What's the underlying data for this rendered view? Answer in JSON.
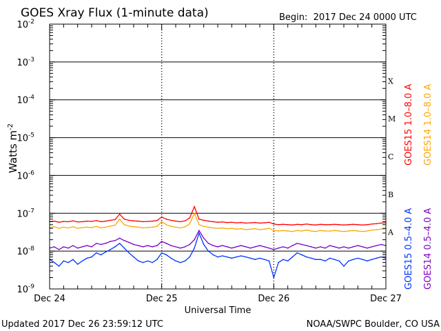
{
  "chart_data": {
    "type": "line",
    "title": "GOES Xray Flux (1-minute data)",
    "begin_label": "Begin:  2017 Dec 24 0000 UTC",
    "updated_label": "Updated 2017 Dec 26 23:59:12 UTC",
    "credit_label": "NOAA/SWPC Boulder, CO USA",
    "xlabel": "Universal Time",
    "ylabel": "Watts m",
    "ylabel_exp": "-2",
    "yscale": "log",
    "ylim": [
      1e-09,
      0.01
    ],
    "xlim_hours": [
      0,
      72
    ],
    "x_unit": "hours since 2017 Dec 24 0000 UTC (hourly samples)",
    "xticks": [
      {
        "hour": 0,
        "label": "Dec 24"
      },
      {
        "hour": 24,
        "label": "Dec 25"
      },
      {
        "hour": 48,
        "label": "Dec 26"
      },
      {
        "hour": 72,
        "label": "Dec 27"
      }
    ],
    "yticks": [
      {
        "value": 0.01,
        "base": "10",
        "exp": "-2"
      },
      {
        "value": 0.001,
        "base": "10",
        "exp": "-3"
      },
      {
        "value": 0.0001,
        "base": "10",
        "exp": "-4"
      },
      {
        "value": 1e-05,
        "base": "10",
        "exp": "-5"
      },
      {
        "value": 1e-06,
        "base": "10",
        "exp": "-6"
      },
      {
        "value": 1e-07,
        "base": "10",
        "exp": "-7"
      },
      {
        "value": 1e-08,
        "base": "10",
        "exp": "-8"
      },
      {
        "value": 1e-09,
        "base": "10",
        "exp": "-9"
      }
    ],
    "flare_classes": [
      {
        "label": "X",
        "low": 0.0001,
        "high": 0.001
      },
      {
        "label": "M",
        "low": 1e-05,
        "high": 0.0001
      },
      {
        "label": "C",
        "low": 1e-06,
        "high": 1e-05
      },
      {
        "label": "B",
        "low": 1e-07,
        "high": 1e-06
      },
      {
        "label": "A",
        "low": 1e-08,
        "high": 1e-07
      }
    ],
    "grid": true,
    "legend_placement": "right, vertical",
    "series": [
      {
        "name": "GOES15 1.0–8.0 A",
        "color": "#ff0000",
        "values": [
          6e-08,
          6.2e-08,
          5.8e-08,
          6.1e-08,
          6e-08,
          6.3e-08,
          5.9e-08,
          6e-08,
          6.2e-08,
          6.1e-08,
          6.4e-08,
          6e-08,
          6.2e-08,
          6.5e-08,
          6.8e-08,
          9.5e-08,
          7e-08,
          6.5e-08,
          6.3e-08,
          6.2e-08,
          6e-08,
          6.1e-08,
          6.2e-08,
          6.4e-08,
          8e-08,
          7e-08,
          6.5e-08,
          6.2e-08,
          6e-08,
          6.3e-08,
          7.5e-08,
          1.5e-07,
          7e-08,
          6.5e-08,
          6.2e-08,
          6e-08,
          5.8e-08,
          5.9e-08,
          5.7e-08,
          5.8e-08,
          5.6e-08,
          5.7e-08,
          5.5e-08,
          5.6e-08,
          5.7e-08,
          5.5e-08,
          5.6e-08,
          5.8e-08,
          5.2e-08,
          5e-08,
          5.1e-08,
          5e-08,
          4.9e-08,
          5.1e-08,
          5e-08,
          5.2e-08,
          5e-08,
          4.9e-08,
          5.1e-08,
          5e-08,
          5e-08,
          5.1e-08,
          5e-08,
          4.9e-08,
          5e-08,
          5.1e-08,
          5e-08,
          4.9e-08,
          5e-08,
          5.2e-08,
          5.3e-08,
          5.5e-08,
          5.6e-08
        ]
      },
      {
        "name": "GOES14 1.0–8.0 A",
        "color": "#ffa500",
        "values": [
          4.2e-08,
          4.4e-08,
          4e-08,
          4.3e-08,
          4.1e-08,
          4.4e-08,
          4e-08,
          4.2e-08,
          4.3e-08,
          4.2e-08,
          4.5e-08,
          4.1e-08,
          4.3e-08,
          4.6e-08,
          4.8e-08,
          7e-08,
          5e-08,
          4.6e-08,
          4.4e-08,
          4.3e-08,
          4.1e-08,
          4.2e-08,
          4.3e-08,
          4.5e-08,
          6e-08,
          5e-08,
          4.5e-08,
          4.3e-08,
          4.1e-08,
          4.4e-08,
          5.3e-08,
          1e-07,
          5e-08,
          4.5e-08,
          4.3e-08,
          4.1e-08,
          4e-08,
          4.1e-08,
          3.9e-08,
          4e-08,
          3.8e-08,
          3.9e-08,
          3.7e-08,
          3.8e-08,
          3.9e-08,
          3.7e-08,
          3.8e-08,
          4e-08,
          3.5e-08,
          3.4e-08,
          3.5e-08,
          3.4e-08,
          3.3e-08,
          3.5e-08,
          3.4e-08,
          3.6e-08,
          3.4e-08,
          3.3e-08,
          3.5e-08,
          3.4e-08,
          3.4e-08,
          3.5e-08,
          3.4e-08,
          3.3e-08,
          3.4e-08,
          3.5e-08,
          3.4e-08,
          3.3e-08,
          3.4e-08,
          3.6e-08,
          3.7e-08,
          3.8e-08,
          3.9e-08
        ]
      },
      {
        "name": "GOES14 0.5–4.0 A",
        "color": "#7b00c8",
        "values": [
          1.2e-08,
          1.3e-08,
          1.1e-08,
          1.3e-08,
          1.2e-08,
          1.4e-08,
          1.2e-08,
          1.3e-08,
          1.4e-08,
          1.3e-08,
          1.6e-08,
          1.5e-08,
          1.6e-08,
          1.8e-08,
          1.9e-08,
          2.2e-08,
          1.9e-08,
          1.7e-08,
          1.5e-08,
          1.4e-08,
          1.3e-08,
          1.4e-08,
          1.3e-08,
          1.4e-08,
          1.8e-08,
          1.6e-08,
          1.4e-08,
          1.3e-08,
          1.2e-08,
          1.3e-08,
          1.5e-08,
          2e-08,
          3.5e-08,
          2.2e-08,
          1.6e-08,
          1.4e-08,
          1.3e-08,
          1.4e-08,
          1.3e-08,
          1.2e-08,
          1.3e-08,
          1.4e-08,
          1.3e-08,
          1.2e-08,
          1.3e-08,
          1.4e-08,
          1.3e-08,
          1.2e-08,
          1.1e-08,
          1.2e-08,
          1.3e-08,
          1.2e-08,
          1.4e-08,
          1.6e-08,
          1.5e-08,
          1.4e-08,
          1.3e-08,
          1.2e-08,
          1.3e-08,
          1.2e-08,
          1.4e-08,
          1.3e-08,
          1.2e-08,
          1.3e-08,
          1.2e-08,
          1.3e-08,
          1.4e-08,
          1.3e-08,
          1.2e-08,
          1.3e-08,
          1.4e-08,
          1.5e-08,
          1.4e-08
        ]
      },
      {
        "name": "GOES15 0.5–4.0 A",
        "color": "#0033ff",
        "values": [
          6e-09,
          5e-09,
          4e-09,
          5.5e-09,
          5e-09,
          6e-09,
          4.5e-09,
          5.5e-09,
          6.5e-09,
          7e-09,
          9e-09,
          8e-09,
          9.5e-09,
          1.1e-08,
          1.3e-08,
          1.6e-08,
          1.2e-08,
          9e-09,
          7e-09,
          5.5e-09,
          5e-09,
          5.5e-09,
          5e-09,
          6e-09,
          9e-09,
          8e-09,
          6.5e-09,
          5.5e-09,
          5e-09,
          5.5e-09,
          7e-09,
          1.2e-08,
          3e-08,
          1.5e-08,
          1e-08,
          8e-09,
          7e-09,
          7.5e-09,
          7e-09,
          6.5e-09,
          7e-09,
          7.5e-09,
          7e-09,
          6.5e-09,
          6e-09,
          6.5e-09,
          6e-09,
          5.5e-09,
          2e-09,
          5e-09,
          6e-09,
          5.5e-09,
          7e-09,
          9e-09,
          8e-09,
          7e-09,
          6.5e-09,
          6e-09,
          6e-09,
          5.5e-09,
          6.5e-09,
          6e-09,
          5.5e-09,
          4e-09,
          5.5e-09,
          6e-09,
          6.5e-09,
          6e-09,
          5.5e-09,
          6e-09,
          6.5e-09,
          7e-09,
          6.5e-09
        ]
      }
    ]
  }
}
